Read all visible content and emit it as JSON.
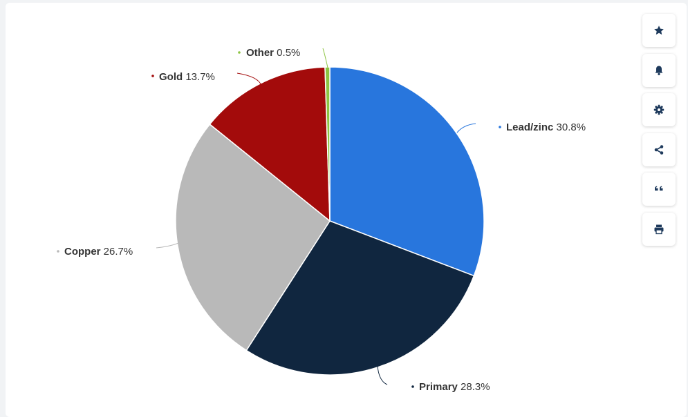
{
  "chart_data": {
    "type": "pie",
    "slices": [
      {
        "name": "Lead/zinc",
        "value": 30.8,
        "label": "30.8%",
        "color": "#2876dd"
      },
      {
        "name": "Primary",
        "value": 28.3,
        "label": "28.3%",
        "color": "#10263f"
      },
      {
        "name": "Copper",
        "value": 26.7,
        "label": "26.7%",
        "color": "#b9b9b9"
      },
      {
        "name": "Gold",
        "value": 13.7,
        "label": "13.7%",
        "color": "#a30b0b"
      },
      {
        "name": "Other",
        "value": 0.5,
        "label": "0.5%",
        "color": "#8dc443"
      }
    ],
    "start_angle": "12 o'clock, clockwise",
    "legend": "none, labels with connector lines"
  },
  "toolbar": {
    "buttons": [
      {
        "icon": "star-icon"
      },
      {
        "icon": "bell-icon"
      },
      {
        "icon": "gear-icon"
      },
      {
        "icon": "share-icon"
      },
      {
        "icon": "quote-icon"
      },
      {
        "icon": "print-icon"
      }
    ],
    "icon_color": "#1e3a5c"
  }
}
